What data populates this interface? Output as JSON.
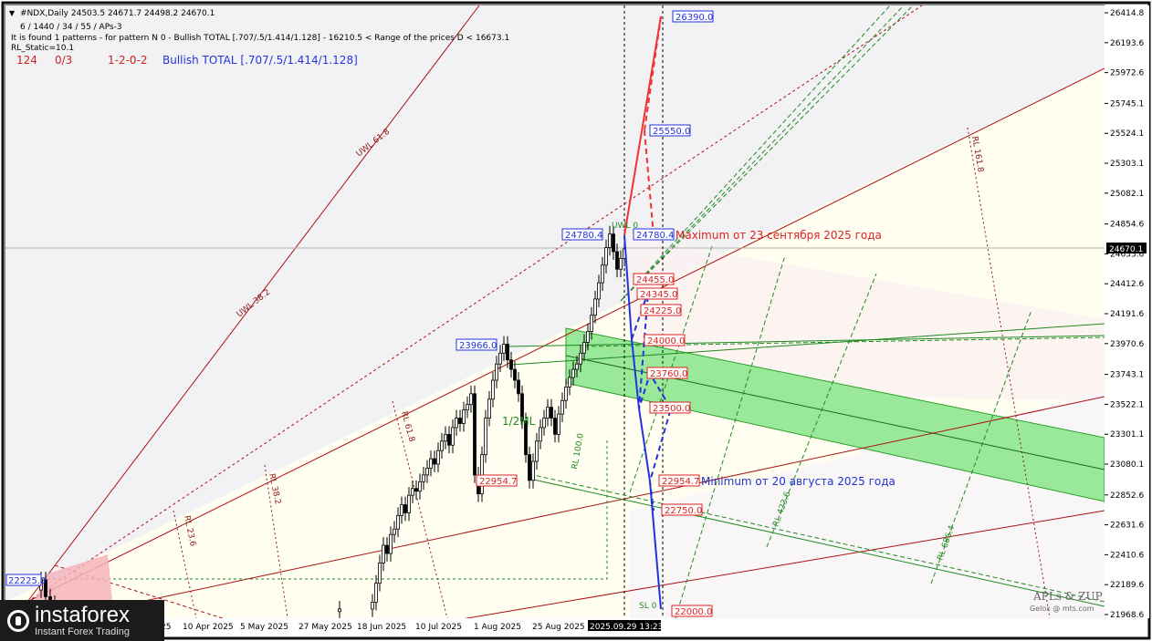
{
  "header": {
    "symbol_line": "#NDX,Daily  24503.5 24671.7 24498.2 24670.1",
    "params_line": "6 / 1440 / 34 / 55 / APs-3",
    "found_line": "It is found 1 patterns  -  for pattern N 0 - Bullish TOTAL [.707/.5/1.414/1.128] - 16210.5 < Range of the prices D < 16673.1",
    "rl_static": "RL_Static=10.1",
    "stat_1": "124",
    "stat_2": "0/3",
    "stat_3": "1-2-0-2",
    "pattern_title": "Bullish TOTAL [.707/.5/1.414/1.128]"
  },
  "price_axis": {
    "ticks": [
      "26414.8",
      "26193.6",
      "25972.6",
      "25745.1",
      "25524.1",
      "25303.1",
      "25082.1",
      "24854.6",
      "24633.6",
      "24412.6",
      "24191.6",
      "23970.6",
      "23743.1",
      "23522.1",
      "23301.1",
      "23080.1",
      "22852.6",
      "22631.6",
      "22410.6",
      "22189.6",
      "21968.6"
    ],
    "current_price": "24670.1"
  },
  "time_axis": {
    "labels": [
      "25",
      "10 Apr 2025",
      "5 May 2025",
      "27 May 2025",
      "18 Jun 2025",
      "10 Jul 2025",
      "1 Aug 2025",
      "25 Aug 2025",
      "2025.09.29 13:23"
    ]
  },
  "levels": {
    "t26390": "26390.0",
    "t25550": "25550.0",
    "t24780": "24780.4",
    "t24455": "24455.0",
    "t24345": "24345.0",
    "t24225": "24225.0",
    "t24000": "24000.0",
    "t23760": "23760.0",
    "t23500": "23500.0",
    "t22954": "22954.7",
    "t22750": "22750.0",
    "t22000": "22000.0",
    "p24780_left": "24780.4",
    "p23966": "23966.0",
    "p22954_left": "22954.7",
    "p22225": "22225.0"
  },
  "annotations": {
    "max_note": "Maximum от 23 сентября 2025 года",
    "min_note": "Minimum от 20 августа 2025 года",
    "brand": "APLs & ZUP",
    "brand_sub": "Gelox @ mts.com",
    "ratio_label": "1/2ML",
    "lines": [
      "UWL 61.8",
      "UWL 38.2",
      "RL 61.8",
      "RL 38.2",
      "RL 23.6",
      "RL 161.8",
      "RL 423.6",
      "RL 686.4",
      "RL 100.0",
      "UWL 0",
      "SL 0"
    ]
  },
  "logo": {
    "name": "instaforex",
    "tagline": "Instant Forex Trading"
  },
  "chart_data": {
    "type": "candlestick",
    "symbol": "#NDX",
    "timeframe": "Daily",
    "ohlc_last": {
      "open": 24503.5,
      "high": 24671.7,
      "low": 24498.2,
      "close": 24670.1
    },
    "x_labels": [
      "25",
      "10 Apr 2025",
      "5 May 2025",
      "27 May 2025",
      "18 Jun 2025",
      "10 Jul 2025",
      "1 Aug 2025",
      "25 Aug 2025",
      "2025.09.29 13:23"
    ],
    "ylim": [
      21968.6,
      26414.8
    ],
    "price_ticks": [
      26414.8,
      26193.6,
      25972.6,
      25745.1,
      25524.1,
      25303.1,
      25082.1,
      24854.6,
      24633.6,
      24412.6,
      24191.6,
      23970.6,
      23743.1,
      23522.1,
      23301.1,
      23080.1,
      22852.6,
      22631.6,
      22410.6,
      22189.6,
      21968.6
    ],
    "current_price": 24670.1,
    "pivots": [
      {
        "label": "22225.0",
        "price": 22225.0
      },
      {
        "label": "23966.0",
        "price": 23966.0
      },
      {
        "label": "22954.7",
        "price": 22954.7
      },
      {
        "label": "24780.4",
        "price": 24780.4
      }
    ],
    "up_targets": [
      26390.0,
      25550.0,
      24780.4
    ],
    "down_targets": [
      24455.0,
      24345.0,
      24225.0,
      24000.0,
      23760.0,
      23500.0,
      22954.7,
      22750.0,
      22000.0
    ],
    "grid": false
  }
}
